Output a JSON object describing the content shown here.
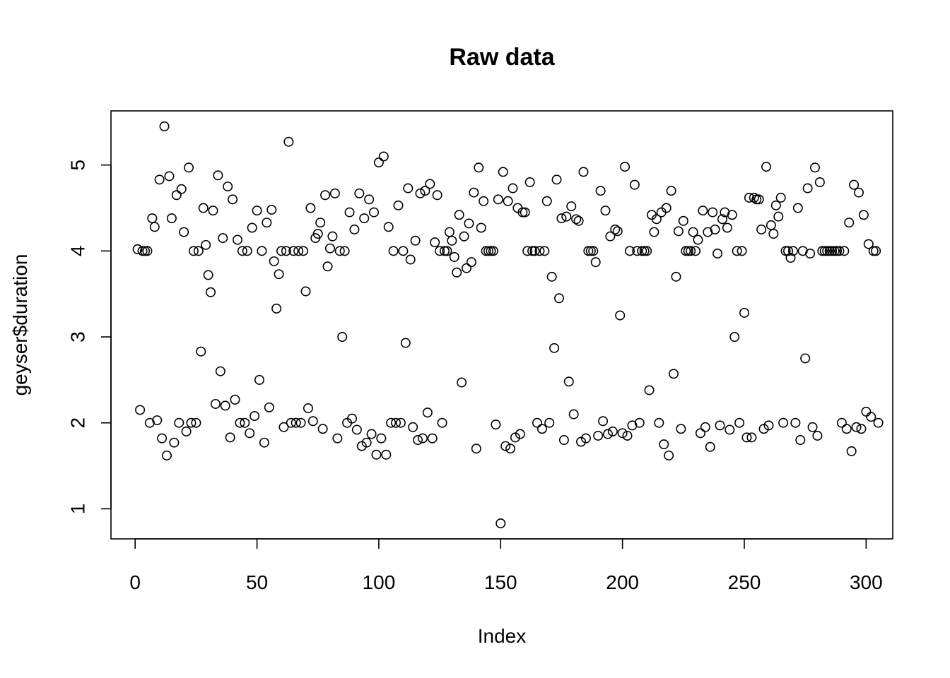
{
  "chart_data": {
    "type": "scatter",
    "title": "Raw data",
    "xlabel": "Index",
    "ylabel": "geyser$duration",
    "xlim": [
      -9.92,
      310.92
    ],
    "ylim": [
      0.65,
      5.63
    ],
    "xticks": [
      0,
      50,
      100,
      150,
      200,
      250,
      300
    ],
    "yticks": [
      1,
      2,
      3,
      4,
      5
    ],
    "x_tick_labels": [
      "0",
      "50",
      "100",
      "150",
      "200",
      "250",
      "300"
    ],
    "y_tick_labels": [
      "1",
      "2",
      "3",
      "4",
      "5"
    ],
    "grid": false,
    "legend": "none",
    "marker": "open-circle",
    "color": "#000000",
    "series": [
      {
        "values": [
          4.02,
          2.15,
          4.0,
          4.0,
          4.0,
          2.0,
          4.38,
          4.28,
          2.03,
          4.83,
          1.82,
          5.45,
          1.62,
          4.87,
          4.38,
          1.77,
          4.65,
          2.0,
          4.72,
          4.22,
          1.9,
          4.97,
          2.0,
          4.0,
          2.0,
          4.0,
          2.83,
          4.5,
          4.07,
          3.72,
          3.52,
          4.47,
          2.22,
          4.88,
          2.6,
          4.15,
          2.2,
          4.75,
          1.83,
          4.6,
          2.27,
          4.13,
          2.0,
          4.0,
          2.0,
          4.0,
          1.88,
          4.27,
          2.08,
          4.47,
          2.5,
          4.0,
          1.77,
          4.33,
          2.18,
          4.48,
          3.88,
          3.33,
          3.73,
          4.0,
          1.95,
          4.0,
          5.27,
          2.0,
          4.0,
          2.0,
          4.0,
          2.0,
          4.0,
          3.53,
          2.17,
          4.5,
          2.02,
          4.15,
          4.2,
          4.33,
          1.93,
          4.65,
          3.82,
          4.03,
          4.17,
          4.67,
          1.82,
          4.0,
          3.0,
          4.0,
          2.0,
          4.45,
          2.05,
          4.25,
          1.92,
          4.67,
          1.73,
          4.38,
          1.77,
          4.6,
          1.87,
          4.45,
          1.63,
          5.03,
          1.82,
          5.1,
          1.63,
          4.28,
          2.0,
          4.0,
          2.0,
          4.53,
          2.0,
          4.0,
          2.93,
          4.73,
          3.9,
          1.95,
          4.12,
          1.8,
          4.67,
          1.82,
          4.7,
          2.12,
          4.78,
          1.82,
          4.1,
          4.65,
          4.0,
          2.0,
          4.0,
          4.0,
          4.22,
          4.12,
          3.93,
          3.75,
          4.42,
          2.47,
          4.17,
          3.8,
          4.32,
          3.87,
          4.68,
          1.7,
          4.97,
          4.27,
          4.58,
          4.0,
          4.0,
          4.0,
          4.0,
          1.98,
          4.6,
          0.83,
          4.92,
          1.73,
          4.58,
          1.7,
          4.73,
          1.83,
          4.5,
          1.87,
          4.45,
          4.45,
          4.0,
          4.8,
          4.0,
          4.0,
          2.0,
          4.0,
          1.93,
          4.0,
          4.58,
          2.0,
          3.7,
          2.87,
          4.83,
          3.45,
          4.38,
          1.8,
          4.4,
          2.48,
          4.52,
          2.1,
          4.37,
          4.35,
          1.78,
          4.92,
          1.82,
          4.0,
          4.0,
          4.0,
          3.87,
          1.85,
          4.7,
          2.02,
          4.47,
          1.87,
          4.17,
          1.9,
          4.25,
          4.23,
          3.25,
          1.88,
          4.98,
          1.85,
          4.0,
          1.97,
          4.77,
          4.0,
          2.0,
          4.0,
          4.0,
          4.0,
          2.38,
          4.42,
          4.22,
          4.37,
          2.0,
          4.45,
          1.75,
          4.5,
          1.62,
          4.7,
          2.57,
          3.7,
          4.23,
          1.93,
          4.35,
          4.0,
          4.0,
          4.0,
          4.22,
          4.0,
          4.13,
          1.88,
          4.47,
          1.95,
          4.22,
          1.72,
          4.45,
          4.25,
          3.97,
          1.97,
          4.37,
          4.45,
          4.27,
          1.92,
          4.42,
          3.0,
          4.0,
          2.0,
          4.0,
          3.28,
          1.83,
          4.62,
          1.83,
          4.62,
          4.6,
          4.6,
          4.25,
          1.93,
          4.98,
          1.97,
          4.3,
          4.2,
          4.53,
          4.4,
          4.62,
          2.0,
          4.0,
          4.0,
          3.92,
          4.0,
          2.0,
          4.5,
          1.8,
          4.0,
          2.75,
          4.73,
          3.97,
          1.95,
          4.97,
          1.85,
          4.8,
          4.0,
          4.0,
          4.0,
          4.0,
          4.0,
          4.0,
          4.0,
          4.0,
          2.0,
          4.0,
          1.93,
          4.33,
          1.67,
          4.77,
          1.95,
          4.68,
          1.93,
          4.42,
          2.13,
          4.08,
          2.07,
          4.0,
          4.0,
          2.0
        ]
      }
    ]
  }
}
